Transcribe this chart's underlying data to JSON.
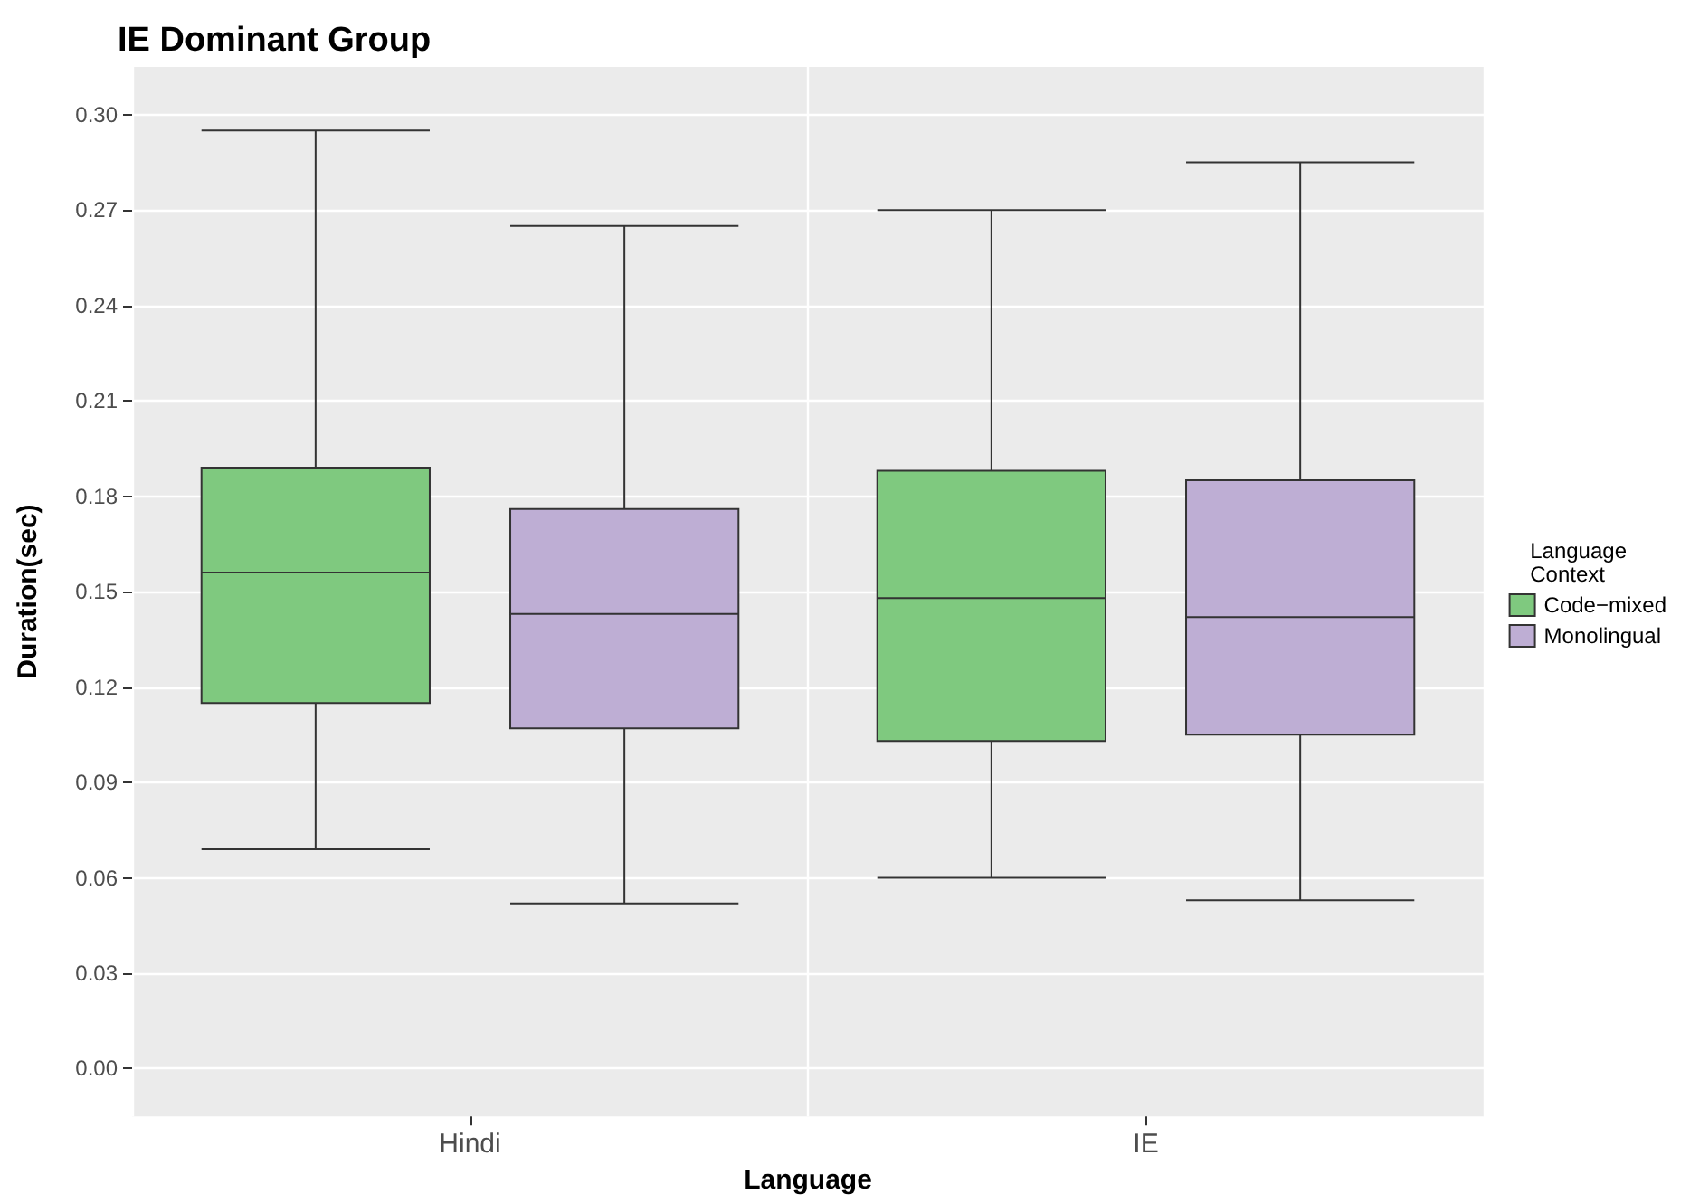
{
  "chart_data": {
    "type": "box",
    "title": "IE Dominant Group",
    "xlabel": "Language",
    "ylabel": "Duration(sec)",
    "legend_title": "Language\nContext",
    "categories": [
      "Hindi",
      "IE"
    ],
    "series": [
      {
        "name": "Code−mixed",
        "color": "#7fc97f",
        "boxes": [
          {
            "low": 0.069,
            "q1": 0.115,
            "median": 0.156,
            "q3": 0.189,
            "high": 0.295
          },
          {
            "low": 0.06,
            "q1": 0.103,
            "median": 0.148,
            "q3": 0.188,
            "high": 0.27
          }
        ]
      },
      {
        "name": "Monolingual",
        "color": "#beaed4",
        "boxes": [
          {
            "low": 0.052,
            "q1": 0.107,
            "median": 0.143,
            "q3": 0.176,
            "high": 0.265
          },
          {
            "low": 0.053,
            "q1": 0.105,
            "median": 0.142,
            "q3": 0.185,
            "high": 0.285
          }
        ]
      }
    ],
    "ylim": [
      -0.015,
      0.315
    ],
    "yticks": [
      {
        "value": 0,
        "label": "0.00"
      },
      0.03,
      0.06,
      0.09,
      {
        "value": 0.12,
        "label": "0.12"
      },
      0.15,
      {
        "value": 0.18,
        "label": "0.18"
      },
      0.21,
      0.24,
      0.27,
      {
        "value": 0.3,
        "label": "0.30"
      }
    ],
    "grid": true,
    "legend": "right"
  }
}
